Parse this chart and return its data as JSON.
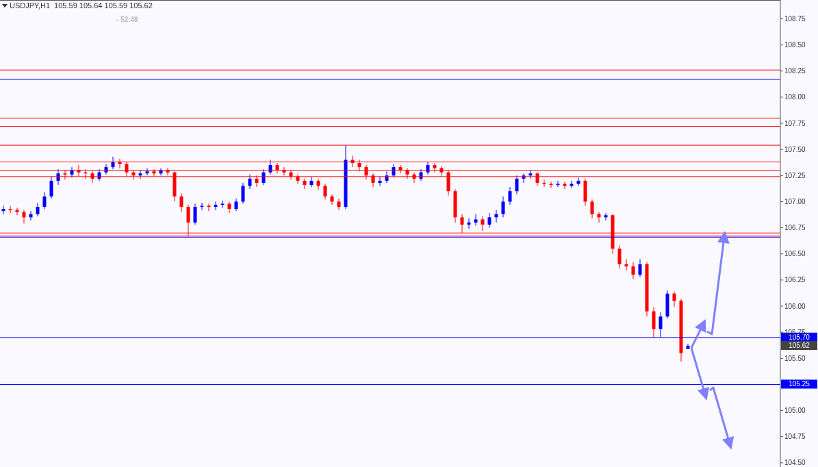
{
  "chart_data": {
    "type": "candlestick",
    "title": "USDJPY,H1",
    "subtitle": "105.59 105.64 105.59 105.62",
    "annotations": [
      "- 52:48",
      "105.62"
    ],
    "colors": [
      "#0000ff",
      "#ff0000",
      "#ff0000",
      "#ff0000",
      "#0000ff",
      "#0000ff",
      "#0000ff",
      "#0000ff",
      "#0000ff",
      "#ff0000",
      "#0000ff",
      "#ff0000",
      "#ff0000",
      "#ff0000",
      "#0000ff",
      "#0000ff",
      "#0000ff",
      "#ff0000",
      "#ff0000",
      "#ff0000",
      "#0000ff",
      "#0000ff",
      "#ff0000",
      "#0000ff",
      "#ff0000",
      "#ff0000",
      "#ff0000",
      "#ff0000",
      "#0000ff",
      "#0000ff",
      "#ff0000",
      "#0000ff",
      "#0000ff",
      "#ff0000",
      "#0000ff",
      "#0000ff",
      "#0000ff",
      "#ff0000",
      "#0000ff",
      "#0000ff",
      "#ff0000",
      "#ff0000",
      "#ff0000",
      "#ff0000",
      "#ff0000",
      "#0000ff",
      "#ff0000",
      "#ff0000",
      "#ff0000",
      "#ff0000",
      "#0000ff",
      "#ff0000",
      "#ff0000",
      "#ff0000",
      "#ff0000",
      "#0000ff",
      "#0000ff",
      "#0000ff",
      "#ff0000",
      "#ff0000",
      "#ff0000",
      "#0000ff",
      "#0000ff",
      "#ff0000",
      "#ff0000",
      "#ff0000",
      "#ff0000",
      "#ff0000",
      "#0000ff",
      "#0000ff",
      "#ff0000",
      "#0000ff",
      "#0000ff",
      "#0000ff",
      "#0000ff",
      "#0000ff",
      "#0000ff",
      "#0000ff",
      "#ff0000",
      "#ff0000",
      "#ff0000",
      "#0000ff",
      "#ff0000",
      "#0000ff",
      "#0000ff",
      "#ff0000",
      "#ff0000",
      "#ff0000",
      "#0000ff",
      "#ff0000",
      "#ff0000",
      "#ff0000",
      "#ff0000",
      "#0000ff",
      "#ff0000",
      "#ff0000",
      "#0000ff",
      "#0000ff",
      "#ff0000",
      "#ff0000",
      "#0000ff",
      null,
      null,
      null,
      null,
      null,
      null,
      null,
      null,
      null,
      null,
      null,
      null,
      null
    ],
    "categories": [
      null,
      null,
      null,
      null,
      null,
      null,
      null,
      null,
      null,
      null,
      null,
      null,
      null,
      null,
      null,
      null,
      null,
      null,
      null,
      null,
      null,
      null,
      null,
      null,
      null,
      null,
      null,
      null,
      null,
      null,
      null,
      null,
      null,
      null,
      null,
      null,
      null,
      null,
      null,
      null,
      null,
      null,
      null,
      null,
      null,
      null,
      null,
      null,
      null,
      null,
      null,
      null,
      null,
      null,
      null,
      null,
      null,
      null,
      null,
      null,
      null,
      null,
      null,
      null,
      null,
      null,
      null,
      null,
      null,
      null,
      null,
      null,
      null,
      null,
      null,
      null,
      null,
      null,
      null,
      null,
      null,
      null,
      null,
      null,
      null,
      null,
      null,
      null,
      null,
      null,
      null,
      null,
      null,
      null,
      null,
      null,
      null,
      null,
      null,
      null,
      null,
      null,
      null,
      null,
      null,
      null,
      null,
      null,
      null,
      null,
      null,
      null,
      null,
      null
    ],
    "ohlc": [
      [
        106.91,
        106.96,
        106.88,
        106.93
      ],
      [
        106.93,
        106.96,
        106.89,
        106.92
      ],
      [
        106.92,
        106.94,
        106.87,
        106.9
      ],
      [
        106.9,
        106.92,
        106.79,
        106.85
      ],
      [
        106.85,
        106.91,
        106.82,
        106.88
      ],
      [
        106.88,
        106.99,
        106.86,
        106.95
      ],
      [
        106.95,
        107.09,
        106.93,
        107.05
      ],
      [
        107.05,
        107.24,
        107.03,
        107.2
      ],
      [
        107.2,
        107.31,
        107.16,
        107.27
      ],
      [
        107.27,
        107.3,
        107.21,
        107.26
      ],
      [
        107.26,
        107.33,
        107.23,
        107.3
      ],
      [
        107.3,
        107.35,
        107.24,
        107.28
      ],
      [
        107.28,
        107.31,
        107.22,
        107.27
      ],
      [
        107.27,
        107.29,
        107.18,
        107.22
      ],
      [
        107.22,
        107.31,
        107.2,
        107.28
      ],
      [
        107.28,
        107.36,
        107.26,
        107.33
      ],
      [
        107.33,
        107.43,
        107.31,
        107.38
      ],
      [
        107.38,
        107.41,
        107.32,
        107.36
      ],
      [
        107.36,
        107.38,
        107.24,
        107.28
      ],
      [
        107.28,
        107.3,
        107.21,
        107.25
      ],
      [
        107.25,
        107.3,
        107.22,
        107.27
      ],
      [
        107.27,
        107.32,
        107.25,
        107.29
      ],
      [
        107.29,
        107.31,
        107.24,
        107.27
      ],
      [
        107.27,
        107.32,
        107.25,
        107.3
      ],
      [
        107.3,
        107.32,
        107.25,
        107.28
      ],
      [
        107.28,
        107.29,
        107.0,
        107.05
      ],
      [
        107.05,
        107.08,
        106.9,
        106.95
      ],
      [
        106.95,
        106.97,
        106.67,
        106.8
      ],
      [
        106.8,
        106.98,
        106.78,
        106.95
      ],
      [
        106.95,
        106.99,
        106.92,
        106.96
      ],
      [
        106.96,
        106.98,
        106.91,
        106.95
      ],
      [
        106.95,
        107.0,
        106.92,
        106.97
      ],
      [
        106.97,
        107.01,
        106.94,
        106.98
      ],
      [
        106.98,
        107.0,
        106.89,
        106.93
      ],
      [
        106.93,
        107.03,
        106.91,
        107.0
      ],
      [
        107.0,
        107.18,
        106.98,
        107.15
      ],
      [
        107.15,
        107.26,
        107.12,
        107.22
      ],
      [
        107.22,
        107.25,
        107.14,
        107.18
      ],
      [
        107.18,
        107.31,
        107.16,
        107.28
      ],
      [
        107.28,
        107.4,
        107.26,
        107.35
      ],
      [
        107.35,
        107.37,
        107.27,
        107.3
      ],
      [
        107.3,
        107.33,
        107.25,
        107.28
      ],
      [
        107.28,
        107.3,
        107.21,
        107.24
      ],
      [
        107.24,
        107.26,
        107.17,
        107.2
      ],
      [
        107.2,
        107.22,
        107.12,
        107.16
      ],
      [
        107.16,
        107.24,
        107.14,
        107.2
      ],
      [
        107.2,
        107.22,
        107.11,
        107.15
      ],
      [
        107.15,
        107.17,
        107.02,
        107.05
      ],
      [
        107.05,
        107.07,
        106.97,
        107.0
      ],
      [
        107.0,
        107.03,
        106.92,
        106.95
      ],
      [
        106.95,
        107.54,
        106.93,
        107.4
      ],
      [
        107.4,
        107.44,
        107.33,
        107.37
      ],
      [
        107.37,
        107.4,
        107.29,
        107.33
      ],
      [
        107.33,
        107.35,
        107.21,
        107.25
      ],
      [
        107.25,
        107.27,
        107.14,
        107.18
      ],
      [
        107.18,
        107.24,
        107.15,
        107.2
      ],
      [
        107.2,
        107.29,
        107.18,
        107.25
      ],
      [
        107.25,
        107.36,
        107.23,
        107.33
      ],
      [
        107.33,
        107.35,
        107.27,
        107.3
      ],
      [
        107.3,
        107.32,
        107.22,
        107.26
      ],
      [
        107.26,
        107.28,
        107.18,
        107.22
      ],
      [
        107.22,
        107.31,
        107.2,
        107.28
      ],
      [
        107.28,
        107.38,
        107.26,
        107.35
      ],
      [
        107.35,
        107.37,
        107.28,
        107.32
      ],
      [
        107.32,
        107.34,
        107.24,
        107.28
      ],
      [
        107.28,
        107.3,
        107.06,
        107.1
      ],
      [
        107.1,
        107.12,
        106.8,
        106.85
      ],
      [
        106.85,
        106.88,
        106.7,
        106.78
      ],
      [
        106.78,
        106.84,
        106.74,
        106.8
      ],
      [
        106.8,
        106.88,
        106.77,
        106.83
      ],
      [
        106.83,
        106.86,
        106.72,
        106.78
      ],
      [
        106.78,
        106.89,
        106.75,
        106.85
      ],
      [
        106.85,
        106.92,
        106.8,
        106.88
      ],
      [
        106.88,
        107.05,
        106.85,
        107.0
      ],
      [
        107.0,
        107.14,
        106.97,
        107.1
      ],
      [
        107.1,
        107.25,
        107.07,
        107.22
      ],
      [
        107.22,
        107.27,
        107.18,
        107.25
      ],
      [
        107.25,
        107.3,
        107.22,
        107.27
      ],
      [
        107.27,
        107.28,
        107.15,
        107.18
      ],
      [
        107.18,
        107.21,
        107.14,
        107.17
      ],
      [
        107.17,
        107.19,
        107.13,
        107.16
      ],
      [
        107.16,
        107.2,
        107.14,
        107.17
      ],
      [
        107.17,
        107.19,
        107.12,
        107.15
      ],
      [
        107.15,
        107.2,
        107.13,
        107.17
      ],
      [
        107.17,
        107.23,
        107.15,
        107.2
      ],
      [
        107.2,
        107.22,
        106.96,
        107.0
      ],
      [
        107.0,
        107.02,
        106.84,
        106.88
      ],
      [
        106.88,
        106.9,
        106.8,
        106.85
      ],
      [
        106.85,
        106.89,
        106.82,
        106.87
      ],
      [
        106.87,
        106.88,
        106.5,
        106.55
      ],
      [
        106.55,
        106.58,
        106.36,
        106.4
      ],
      [
        106.4,
        106.45,
        106.34,
        106.38
      ],
      [
        106.38,
        106.42,
        106.26,
        106.3
      ],
      [
        106.3,
        106.45,
        106.28,
        106.4
      ],
      [
        106.4,
        106.42,
        105.9,
        105.95
      ],
      [
        105.95,
        105.99,
        105.7,
        105.78
      ],
      [
        105.78,
        105.94,
        105.7,
        105.9
      ],
      [
        105.9,
        106.15,
        105.88,
        106.12
      ],
      [
        106.12,
        106.14,
        105.99,
        106.05
      ],
      [
        106.05,
        106.07,
        105.47,
        105.55
      ],
      [
        105.59,
        105.64,
        105.59,
        105.62
      ],
      null,
      null,
      null,
      null,
      null,
      null,
      null,
      null,
      null,
      null,
      null,
      null,
      null
    ],
    "ylim": [
      104.46,
      108.93
    ],
    "yticks": [
      {
        "value": 104.5,
        "label": "104.50"
      },
      {
        "value": 104.75,
        "label": "104.75"
      },
      {
        "value": 105,
        "label": "105.00"
      },
      {
        "value": 105.5,
        "label": "105.50"
      },
      {
        "value": 105.75,
        "label": "105.75"
      },
      {
        "value": 106,
        "label": "106.00"
      },
      {
        "value": 106.25,
        "label": "106.25"
      },
      {
        "value": 106.5,
        "label": "106.50"
      },
      {
        "value": 106.75,
        "label": "106.75"
      },
      {
        "value": 107,
        "label": "107.00"
      },
      {
        "value": 107.25,
        "label": "107.25"
      },
      {
        "value": 107.5,
        "label": "107.50"
      },
      {
        "value": 107.75,
        "label": "107.75"
      },
      {
        "value": 108,
        "label": "108.00"
      },
      {
        "value": 108.25,
        "label": "108.25"
      },
      {
        "value": 108.5,
        "label": "108.50"
      },
      {
        "value": 108.75,
        "label": "108.75"
      }
    ],
    "tick_labels": "y",
    "ref_lines": [
      {
        "axis": "y",
        "value": 108.26,
        "color": "#ff0000"
      },
      {
        "axis": "y",
        "value": 108.17,
        "color": "#0000ff"
      },
      {
        "axis": "y",
        "value": 107.8,
        "color": "#ff0000"
      },
      {
        "axis": "y",
        "value": 107.72,
        "color": "#ff0000"
      },
      {
        "axis": "y",
        "value": 107.54,
        "color": "#ff0000"
      },
      {
        "axis": "y",
        "value": 107.38,
        "color": "#ff0000"
      },
      {
        "axis": "y",
        "value": 107.3,
        "color": "#ff0000"
      },
      {
        "axis": "y",
        "value": 107.24,
        "color": "#ff0000"
      },
      {
        "axis": "y",
        "value": 106.7,
        "color": "#ff0000"
      },
      {
        "axis": "y",
        "value": 106.67,
        "color": "#ff0000"
      },
      {
        "axis": "y",
        "value": 106.66,
        "color": "#0000ff"
      },
      {
        "axis": "y",
        "value": 105.7,
        "label": "105.70",
        "color": "#0000ff"
      },
      {
        "axis": "y",
        "value": 105.25,
        "label": "105.25",
        "color": "#0000ff"
      }
    ]
  }
}
